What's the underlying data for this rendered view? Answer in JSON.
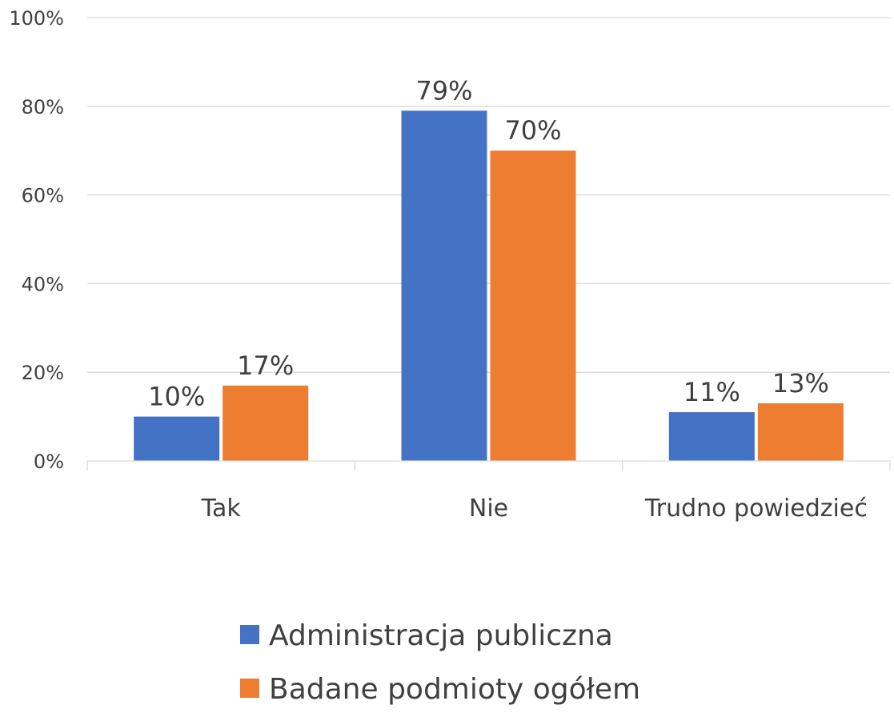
{
  "chart_data": {
    "type": "bar",
    "categories": [
      "Tak",
      "Nie",
      "Trudno powiedzieć"
    ],
    "series": [
      {
        "name": "Administracja publiczna",
        "values": [
          10,
          79,
          11
        ],
        "labels": [
          "10%",
          "79%",
          "11%"
        ],
        "color": "#4472C4"
      },
      {
        "name": "Badane podmioty ogółem",
        "values": [
          17,
          70,
          13
        ],
        "labels": [
          "17%",
          "70%",
          "13%"
        ],
        "color": "#ED7D31"
      }
    ],
    "ylim": [
      0,
      100
    ],
    "yticks": [
      0,
      20,
      40,
      60,
      80,
      100
    ],
    "ytick_labels": [
      "0%",
      "20%",
      "40%",
      "60%",
      "80%",
      "100%"
    ],
    "grid": true,
    "legend_position": "bottom",
    "title": "",
    "xlabel": "",
    "ylabel": ""
  }
}
